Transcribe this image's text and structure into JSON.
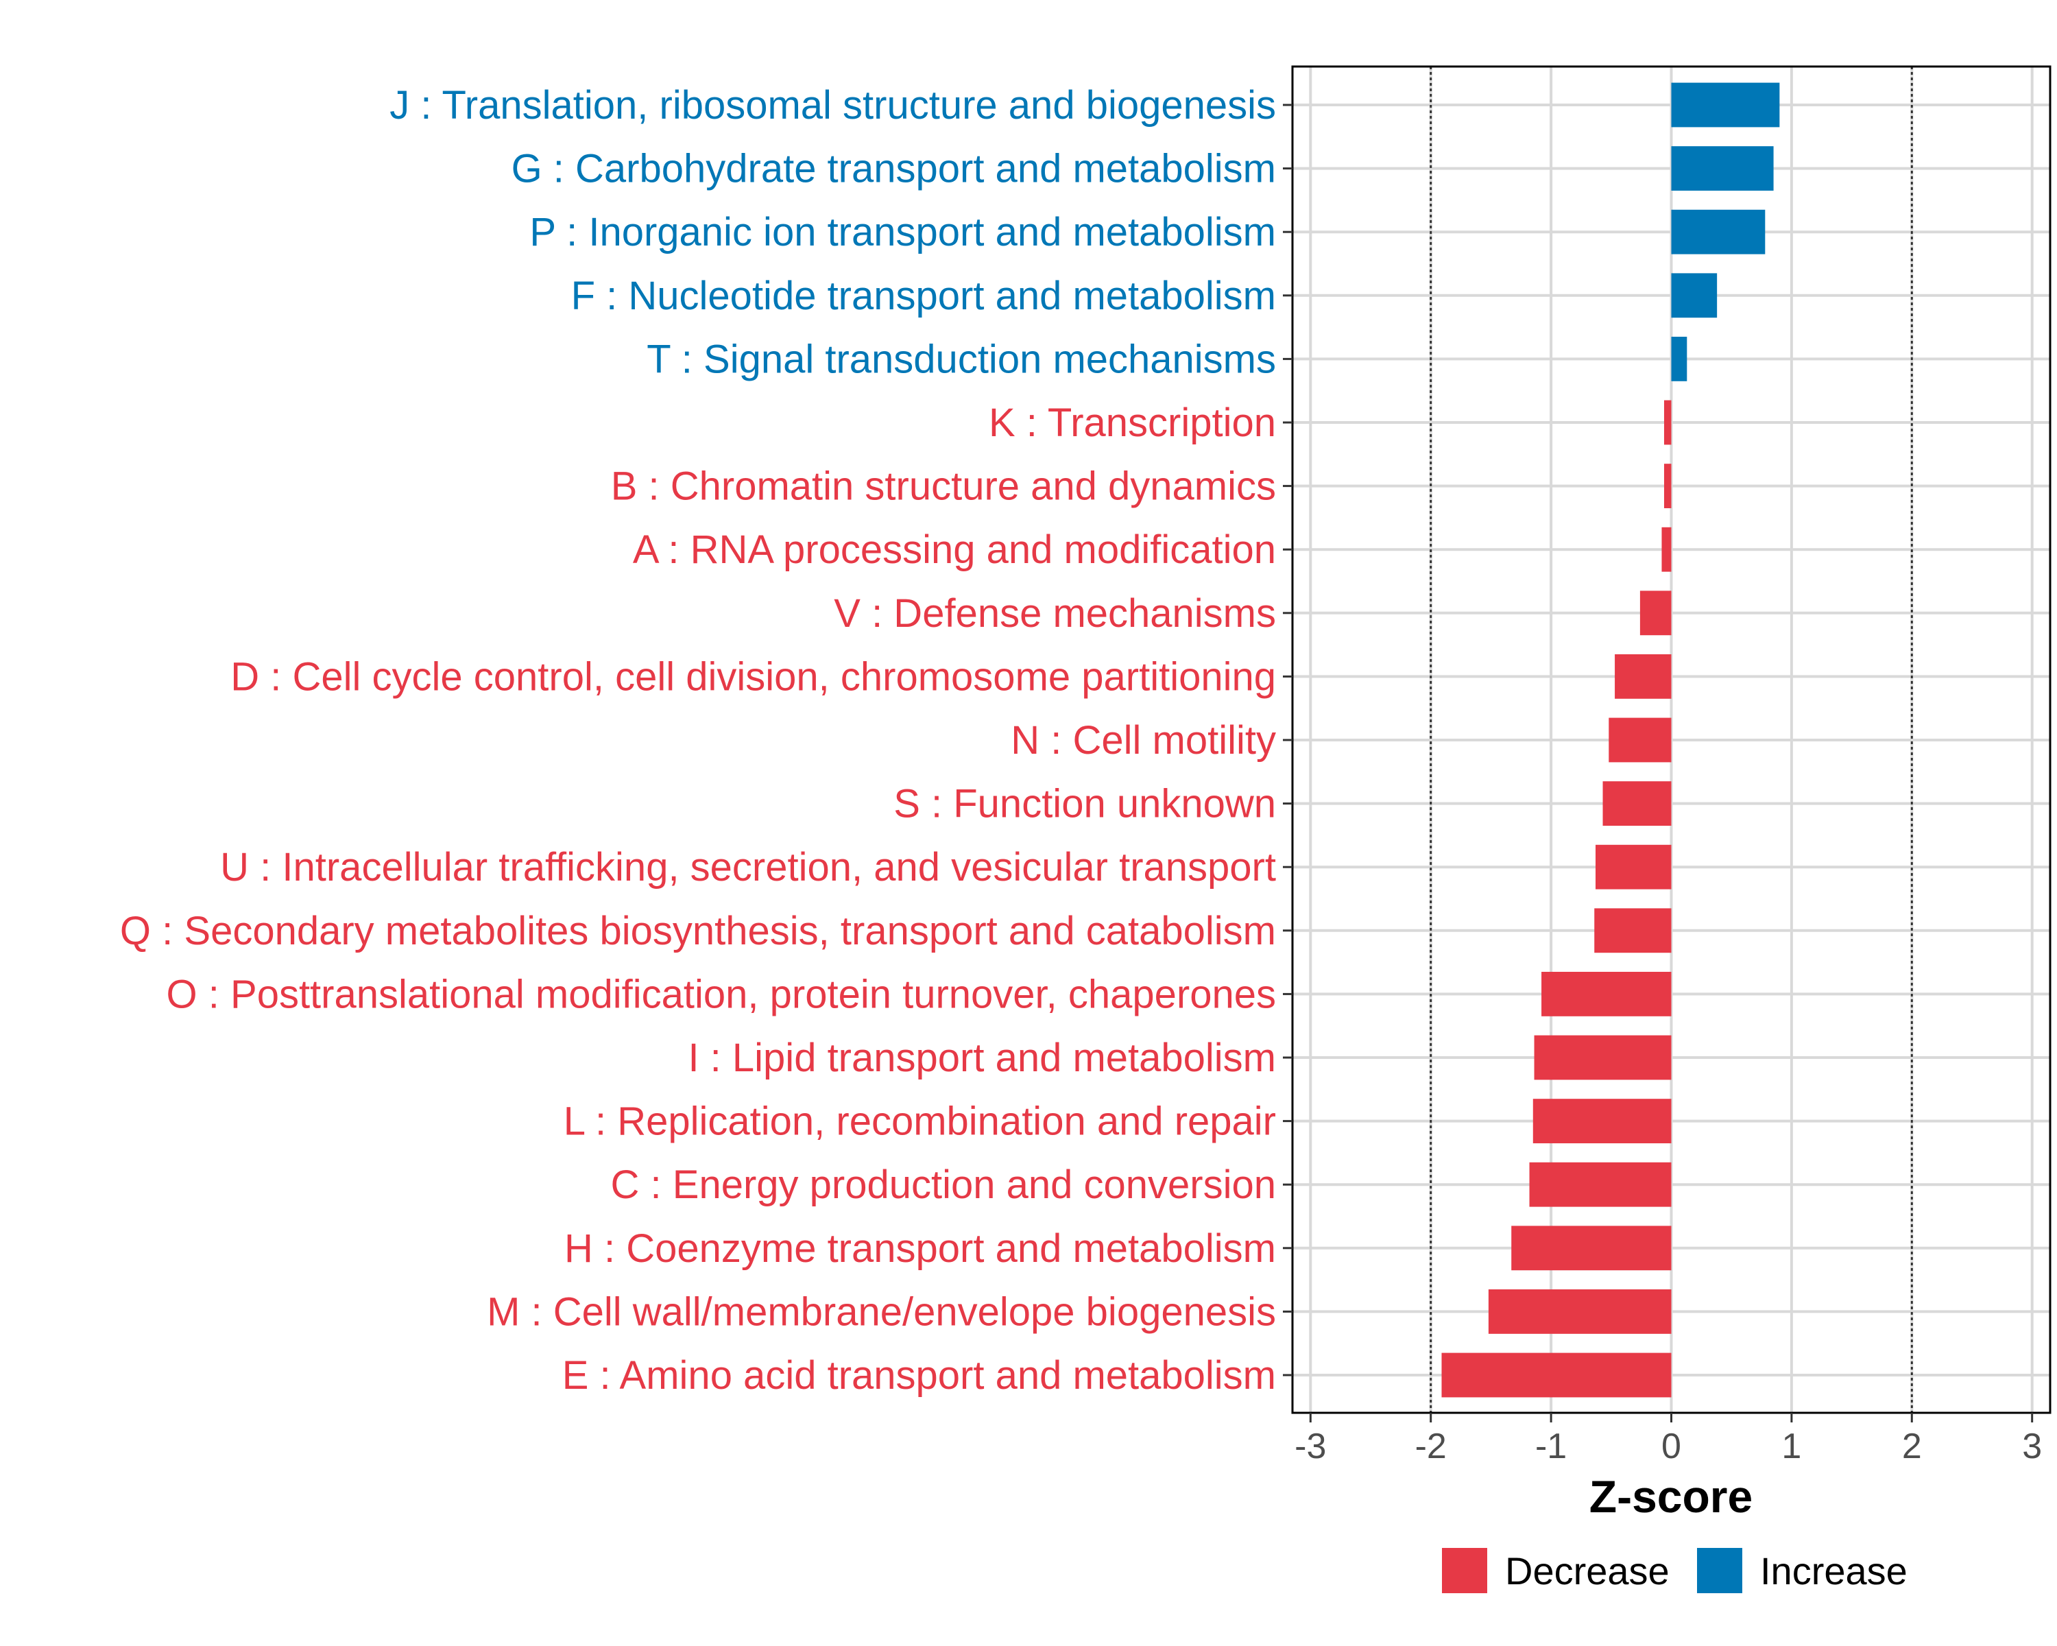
{
  "chart_data": {
    "type": "bar",
    "orientation": "horizontal",
    "title": "",
    "xlabel": "Z-score",
    "ylabel": "",
    "xlim": [
      -3.15,
      3.15
    ],
    "xticks": [
      -3,
      -2,
      -1,
      0,
      1,
      2,
      3
    ],
    "tick_labels": [
      "-3",
      "-2",
      "-1",
      "0",
      "1",
      "2",
      "3"
    ],
    "reference_lines": [
      -2,
      2
    ],
    "grid": true,
    "legend_position": "bottom",
    "colors": {
      "Decrease": "#e63946",
      "Increase": "#0077b6"
    },
    "legend": [
      {
        "label": "Decrease",
        "color": "#e63946"
      },
      {
        "label": "Increase",
        "color": "#0077b6"
      }
    ],
    "categories": [
      "J : Translation, ribosomal structure and biogenesis",
      "G : Carbohydrate transport and metabolism",
      "P : Inorganic ion transport and metabolism",
      "F : Nucleotide transport and metabolism",
      "T : Signal transduction mechanisms",
      "K : Transcription",
      "B : Chromatin structure and dynamics",
      "A : RNA processing and modification",
      "V : Defense mechanisms",
      "D : Cell cycle control, cell division, chromosome partitioning",
      "N : Cell motility",
      "S : Function unknown",
      "U : Intracellular trafficking, secretion, and vesicular transport",
      "Q : Secondary metabolites biosynthesis, transport and catabolism",
      "O : Posttranslational modification, protein turnover, chaperones",
      "I : Lipid transport and metabolism",
      "L : Replication, recombination and repair",
      "C : Energy production and conversion",
      "H : Coenzyme transport and metabolism",
      "M : Cell wall/membrane/envelope biogenesis",
      "E : Amino acid transport and metabolism"
    ],
    "values": [
      0.9,
      0.85,
      0.78,
      0.38,
      0.13,
      -0.06,
      -0.06,
      -0.08,
      -0.26,
      -0.47,
      -0.52,
      -0.57,
      -0.63,
      -0.64,
      -1.08,
      -1.14,
      -1.15,
      -1.18,
      -1.33,
      -1.52,
      -1.91
    ],
    "direction": [
      "Increase",
      "Increase",
      "Increase",
      "Increase",
      "Increase",
      "Decrease",
      "Decrease",
      "Decrease",
      "Decrease",
      "Decrease",
      "Decrease",
      "Decrease",
      "Decrease",
      "Decrease",
      "Decrease",
      "Decrease",
      "Decrease",
      "Decrease",
      "Decrease",
      "Decrease",
      "Decrease"
    ]
  }
}
